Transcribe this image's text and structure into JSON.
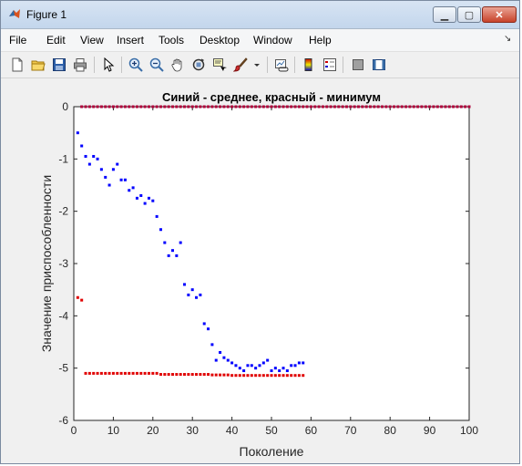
{
  "window": {
    "title": "Figure 1",
    "buttons": {
      "minimize": "▁",
      "maximize": "▢",
      "close": "✕"
    }
  },
  "menu": {
    "items": [
      {
        "label": "File",
        "id": "file"
      },
      {
        "label": "Edit",
        "id": "edit"
      },
      {
        "label": "View",
        "id": "view"
      },
      {
        "label": "Insert",
        "id": "insert"
      },
      {
        "label": "Tools",
        "id": "tools"
      },
      {
        "label": "Desktop",
        "id": "desktop"
      },
      {
        "label": "Window",
        "id": "window"
      },
      {
        "label": "Help",
        "id": "help"
      }
    ],
    "dock_arrow": "↘"
  },
  "toolbar": {
    "icons": [
      "new-figure-icon",
      "open-icon",
      "save-icon",
      "print-icon",
      "pointer-icon",
      "zoom-in-icon",
      "zoom-out-icon",
      "pan-icon",
      "rotate-3d-icon",
      "data-cursor-icon",
      "brush-icon",
      "brush-dropdown-icon",
      "link-icon",
      "colorbar-icon",
      "legend-icon",
      "hide-plot-tools-icon",
      "show-plot-tools-icon"
    ]
  },
  "colors": {
    "series_mean": "#0000ff",
    "series_min": "#e00000",
    "axes_bg": "#ffffff",
    "figure_bg": "#f0f0f0"
  },
  "chart_data": {
    "type": "scatter",
    "title": "Синий - среднее, красный - минимум",
    "xlabel": "Поколение",
    "ylabel": "Значение приспособленности",
    "xlim": [
      0,
      100
    ],
    "ylim": [
      -6,
      0
    ],
    "xticks": [
      "0",
      "10",
      "20",
      "30",
      "40",
      "50",
      "60",
      "70",
      "80",
      "90",
      "100"
    ],
    "yticks": [
      "0",
      "-1",
      "-2",
      "-3",
      "-4",
      "-5",
      "-6"
    ],
    "series": [
      {
        "color": "#0000ff",
        "points": [
          [
            1,
            -0.5
          ],
          [
            2,
            -0.75
          ],
          [
            3,
            -0.95
          ],
          [
            4,
            -1.1
          ],
          [
            5,
            -0.95
          ],
          [
            6,
            -1.0
          ],
          [
            7,
            -1.2
          ],
          [
            8,
            -1.35
          ],
          [
            9,
            -1.5
          ],
          [
            10,
            -1.2
          ],
          [
            11,
            -1.1
          ],
          [
            12,
            -1.4
          ],
          [
            13,
            -1.4
          ],
          [
            14,
            -1.6
          ],
          [
            15,
            -1.55
          ],
          [
            16,
            -1.75
          ],
          [
            17,
            -1.7
          ],
          [
            18,
            -1.85
          ],
          [
            19,
            -1.75
          ],
          [
            20,
            -1.8
          ],
          [
            21,
            -2.1
          ],
          [
            22,
            -2.35
          ],
          [
            23,
            -2.6
          ],
          [
            24,
            -2.85
          ],
          [
            25,
            -2.75
          ],
          [
            26,
            -2.85
          ],
          [
            27,
            -2.6
          ],
          [
            28,
            -3.4
          ],
          [
            29,
            -3.6
          ],
          [
            30,
            -3.5
          ],
          [
            31,
            -3.65
          ],
          [
            32,
            -3.6
          ],
          [
            33,
            -4.15
          ],
          [
            34,
            -4.25
          ],
          [
            35,
            -4.55
          ],
          [
            36,
            -4.85
          ],
          [
            37,
            -4.7
          ],
          [
            38,
            -4.8
          ],
          [
            39,
            -4.85
          ],
          [
            40,
            -4.9
          ],
          [
            41,
            -4.95
          ],
          [
            42,
            -5.0
          ],
          [
            43,
            -5.05
          ],
          [
            44,
            -4.95
          ],
          [
            45,
            -4.95
          ],
          [
            46,
            -5.0
          ],
          [
            47,
            -4.95
          ],
          [
            48,
            -4.9
          ],
          [
            49,
            -4.85
          ],
          [
            50,
            -5.05
          ],
          [
            51,
            -5.0
          ],
          [
            52,
            -5.05
          ],
          [
            53,
            -5.0
          ],
          [
            54,
            -5.05
          ],
          [
            55,
            -4.95
          ],
          [
            56,
            -4.95
          ],
          [
            57,
            -4.9
          ],
          [
            58,
            -4.9
          ]
        ]
      },
      {
        "color": "#e00000",
        "points": [
          [
            1,
            -3.65
          ],
          [
            2,
            -3.7
          ],
          [
            3,
            -5.1
          ],
          [
            4,
            -5.1
          ],
          [
            5,
            -5.1
          ],
          [
            6,
            -5.1
          ],
          [
            7,
            -5.1
          ],
          [
            8,
            -5.1
          ],
          [
            9,
            -5.1
          ],
          [
            10,
            -5.1
          ],
          [
            11,
            -5.1
          ],
          [
            12,
            -5.1
          ],
          [
            13,
            -5.1
          ],
          [
            14,
            -5.1
          ],
          [
            15,
            -5.1
          ],
          [
            16,
            -5.1
          ],
          [
            17,
            -5.1
          ],
          [
            18,
            -5.1
          ],
          [
            19,
            -5.1
          ],
          [
            20,
            -5.1
          ],
          [
            21,
            -5.1
          ],
          [
            22,
            -5.12
          ],
          [
            23,
            -5.12
          ],
          [
            24,
            -5.12
          ],
          [
            25,
            -5.12
          ],
          [
            26,
            -5.12
          ],
          [
            27,
            -5.12
          ],
          [
            28,
            -5.12
          ],
          [
            29,
            -5.12
          ],
          [
            30,
            -5.12
          ],
          [
            31,
            -5.12
          ],
          [
            32,
            -5.12
          ],
          [
            33,
            -5.12
          ],
          [
            34,
            -5.12
          ],
          [
            35,
            -5.13
          ],
          [
            36,
            -5.13
          ],
          [
            37,
            -5.13
          ],
          [
            38,
            -5.13
          ],
          [
            39,
            -5.13
          ],
          [
            40,
            -5.14
          ],
          [
            41,
            -5.14
          ],
          [
            42,
            -5.14
          ],
          [
            43,
            -5.14
          ],
          [
            44,
            -5.14
          ],
          [
            45,
            -5.14
          ],
          [
            46,
            -5.14
          ],
          [
            47,
            -5.14
          ],
          [
            48,
            -5.14
          ],
          [
            49,
            -5.14
          ],
          [
            50,
            -5.14
          ],
          [
            51,
            -5.14
          ],
          [
            52,
            -5.14
          ],
          [
            53,
            -5.14
          ],
          [
            54,
            -5.14
          ],
          [
            55,
            -5.14
          ],
          [
            56,
            -5.14
          ],
          [
            57,
            -5.14
          ],
          [
            58,
            -5.14
          ]
        ]
      },
      {
        "color": "#b0003a",
        "points": [
          [
            2,
            0
          ],
          [
            3,
            0
          ],
          [
            4,
            0
          ],
          [
            5,
            0
          ],
          [
            6,
            0
          ],
          [
            7,
            0
          ],
          [
            8,
            0
          ],
          [
            9,
            0
          ],
          [
            10,
            0
          ],
          [
            11,
            0
          ],
          [
            12,
            0
          ],
          [
            13,
            0
          ],
          [
            14,
            0
          ],
          [
            15,
            0
          ],
          [
            16,
            0
          ],
          [
            17,
            0
          ],
          [
            18,
            0
          ],
          [
            19,
            0
          ],
          [
            20,
            0
          ],
          [
            21,
            0
          ],
          [
            22,
            0
          ],
          [
            23,
            0
          ],
          [
            24,
            0
          ],
          [
            25,
            0
          ],
          [
            26,
            0
          ],
          [
            27,
            0
          ],
          [
            28,
            0
          ],
          [
            29,
            0
          ],
          [
            30,
            0
          ],
          [
            31,
            0
          ],
          [
            32,
            0
          ],
          [
            33,
            0
          ],
          [
            34,
            0
          ],
          [
            35,
            0
          ],
          [
            36,
            0
          ],
          [
            37,
            0
          ],
          [
            38,
            0
          ],
          [
            39,
            0
          ],
          [
            40,
            0
          ],
          [
            41,
            0
          ],
          [
            42,
            0
          ],
          [
            43,
            0
          ],
          [
            44,
            0
          ],
          [
            45,
            0
          ],
          [
            46,
            0
          ],
          [
            47,
            0
          ],
          [
            48,
            0
          ],
          [
            49,
            0
          ],
          [
            50,
            0
          ],
          [
            51,
            0
          ],
          [
            52,
            0
          ],
          [
            53,
            0
          ],
          [
            54,
            0
          ],
          [
            55,
            0
          ],
          [
            56,
            0
          ],
          [
            57,
            0
          ],
          [
            58,
            0
          ],
          [
            59,
            0
          ],
          [
            60,
            0
          ],
          [
            61,
            0
          ],
          [
            62,
            0
          ],
          [
            63,
            0
          ],
          [
            64,
            0
          ],
          [
            65,
            0
          ],
          [
            66,
            0
          ],
          [
            67,
            0
          ],
          [
            68,
            0
          ],
          [
            69,
            0
          ],
          [
            70,
            0
          ],
          [
            71,
            0
          ],
          [
            72,
            0
          ],
          [
            73,
            0
          ],
          [
            74,
            0
          ],
          [
            75,
            0
          ],
          [
            76,
            0
          ],
          [
            77,
            0
          ],
          [
            78,
            0
          ],
          [
            79,
            0
          ],
          [
            80,
            0
          ],
          [
            81,
            0
          ],
          [
            82,
            0
          ],
          [
            83,
            0
          ],
          [
            84,
            0
          ],
          [
            85,
            0
          ],
          [
            86,
            0
          ],
          [
            87,
            0
          ],
          [
            88,
            0
          ],
          [
            89,
            0
          ],
          [
            90,
            0
          ],
          [
            91,
            0
          ],
          [
            92,
            0
          ],
          [
            93,
            0
          ],
          [
            94,
            0
          ],
          [
            95,
            0
          ],
          [
            96,
            0
          ],
          [
            97,
            0
          ],
          [
            98,
            0
          ],
          [
            99,
            0
          ],
          [
            100,
            0
          ]
        ]
      }
    ]
  }
}
